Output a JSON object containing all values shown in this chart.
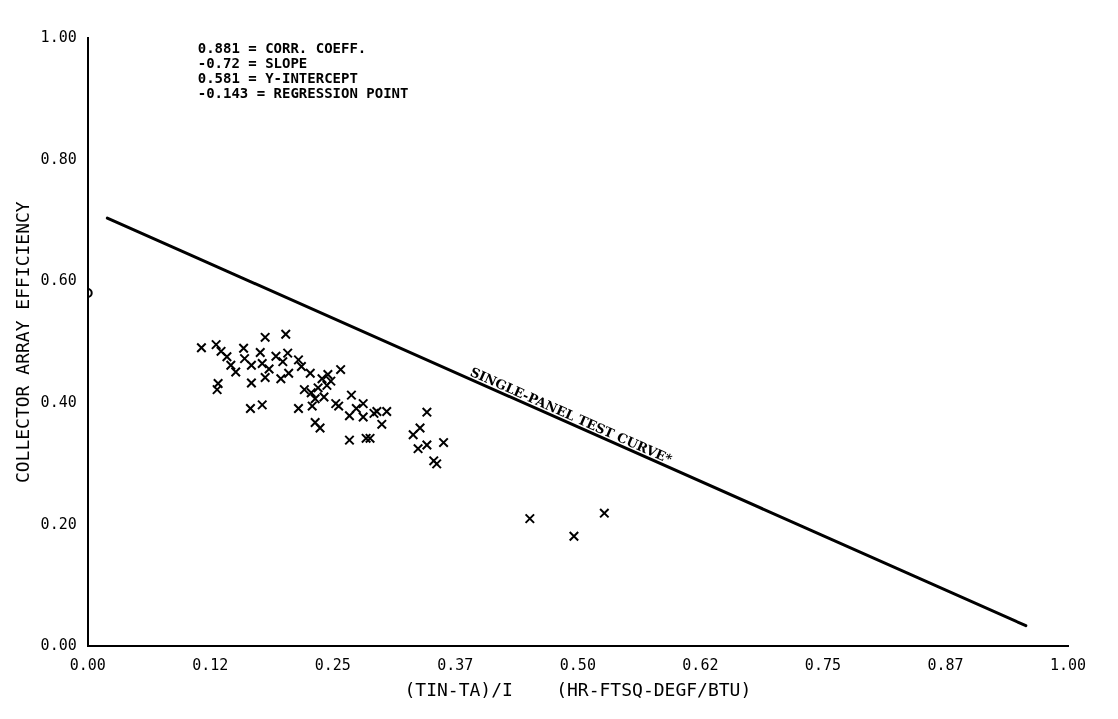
{
  "chart_data": {
    "type": "scatter",
    "xlabel": "(TIN-TA)/I    (HR-FTSQ-DEGF/BTU)",
    "ylabel": "COLLECTOR ARRAY EFFICIENCY",
    "xlim": [
      0,
      1
    ],
    "ylim": [
      0,
      1
    ],
    "xticks": [
      {
        "value": 0,
        "label": "0.00"
      },
      {
        "value": 0.125,
        "label": "0.12"
      },
      {
        "value": 0.25,
        "label": "0.25"
      },
      {
        "value": 0.375,
        "label": "0.37"
      },
      {
        "value": 0.5,
        "label": "0.50"
      },
      {
        "value": 0.625,
        "label": "0.62"
      },
      {
        "value": 0.75,
        "label": "0.75"
      },
      {
        "value": 0.875,
        "label": "0.87"
      },
      {
        "value": 1,
        "label": "1.00"
      }
    ],
    "yticks": [
      {
        "value": 0,
        "label": "0.00"
      },
      {
        "value": 0.2,
        "label": "0.20"
      },
      {
        "value": 0.4,
        "label": "0.40"
      },
      {
        "value": 0.6,
        "label": "0.60"
      },
      {
        "value": 0.8,
        "label": "0.80"
      },
      {
        "value": 1,
        "label": "1.00"
      }
    ],
    "grid": false,
    "legend": false,
    "annotations": [
      "0.881 = CORR. COEFF.",
      "-0.72 = SLOPE",
      "0.581 = Y-INTERCEPT",
      "-0.143 = REGRESSION POINT",
      {
        "text": "SINGLE-PANEL TEST CURVE*",
        "x": 0.49,
        "y": 0.368
      }
    ],
    "series": [
      {
        "type": "line",
        "color": "#000000",
        "marker": "none",
        "line_style": "solid",
        "x": [
          0.02,
          0.957
        ],
        "values": [
          0.704,
          0.034
        ]
      },
      {
        "color": "#000000",
        "marker": "cross",
        "x": [
          0.116,
          0.131,
          0.136,
          0.142,
          0.146,
          0.151,
          0.133,
          0.132,
          0.159,
          0.16,
          0.167,
          0.167,
          0.166,
          0.178,
          0.181,
          0.202,
          0.176,
          0.192,
          0.178,
          0.185,
          0.199,
          0.204,
          0.181,
          0.197,
          0.205,
          0.215,
          0.218,
          0.227,
          0.239,
          0.245,
          0.258,
          0.221,
          0.228,
          0.235,
          0.244,
          0.248,
          0.215,
          0.229,
          0.232,
          0.241,
          0.253,
          0.256,
          0.269,
          0.267,
          0.274,
          0.281,
          0.281,
          0.292,
          0.295,
          0.305,
          0.3,
          0.232,
          0.237,
          0.267,
          0.284,
          0.288,
          0.346,
          0.332,
          0.339,
          0.337,
          0.346,
          0.363,
          0.353,
          0.356,
          0.451,
          0.496,
          0.527
        ],
        "values": [
          0.491,
          0.496,
          0.485,
          0.476,
          0.462,
          0.451,
          0.432,
          0.422,
          0.49,
          0.473,
          0.462,
          0.433,
          0.391,
          0.397,
          0.508,
          0.513,
          0.483,
          0.477,
          0.465,
          0.456,
          0.468,
          0.482,
          0.442,
          0.44,
          0.449,
          0.471,
          0.46,
          0.449,
          0.44,
          0.447,
          0.455,
          0.422,
          0.417,
          0.425,
          0.429,
          0.436,
          0.391,
          0.395,
          0.407,
          0.41,
          0.399,
          0.395,
          0.413,
          0.379,
          0.391,
          0.399,
          0.377,
          0.383,
          0.386,
          0.386,
          0.365,
          0.368,
          0.359,
          0.339,
          0.342,
          0.342,
          0.385,
          0.348,
          0.359,
          0.325,
          0.331,
          0.335,
          0.305,
          0.3,
          0.21,
          0.181,
          0.219
        ]
      },
      {
        "color": "#000000",
        "marker": "circle",
        "x": [
          0
        ],
        "values": [
          0.581
        ]
      }
    ]
  }
}
